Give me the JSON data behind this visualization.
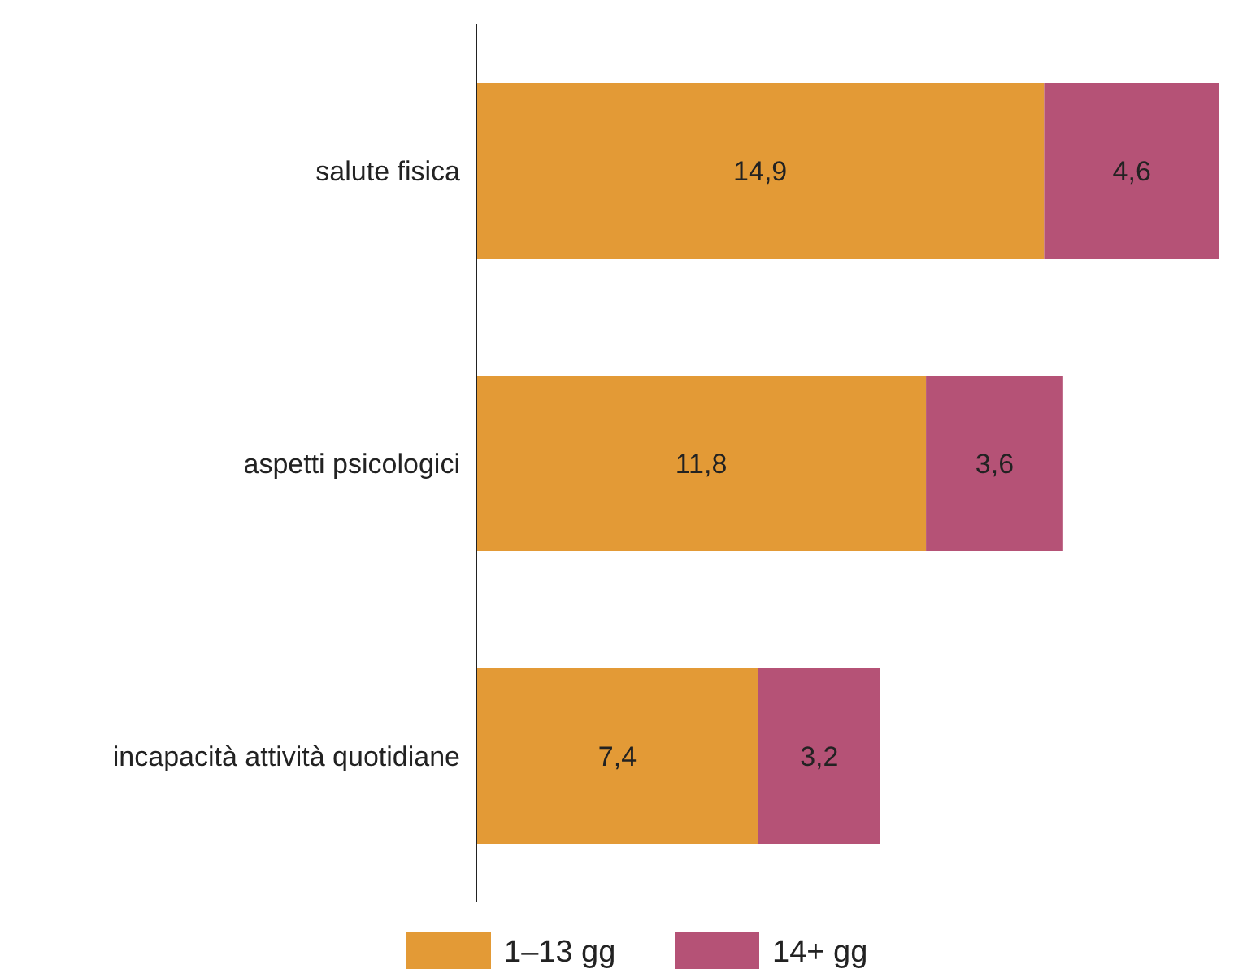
{
  "chart_data": {
    "type": "bar",
    "orientation": "horizontal",
    "stacked": true,
    "legend": "bottom",
    "categories": [
      "salute fisica",
      "aspetti psicologici",
      "incapacità attività quotidiane"
    ],
    "series": [
      {
        "name": "1–13 gg",
        "color": "#e39a36",
        "values": [
          14.9,
          11.8,
          7.4
        ],
        "value_labels": [
          "14,9",
          "11,8",
          "7,4"
        ]
      },
      {
        "name": "14+ gg",
        "color": "#b55276",
        "values": [
          4.6,
          3.6,
          3.2
        ],
        "value_labels": [
          "4,6",
          "3,6",
          "3,2"
        ]
      }
    ]
  }
}
